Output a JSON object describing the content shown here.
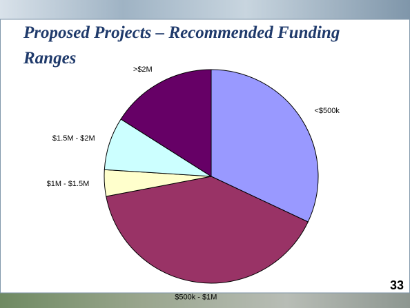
{
  "chart_data": {
    "type": "pie",
    "title_lines": [
      "Proposed Projects – Recommended Funding",
      "Ranges"
    ],
    "categories": [
      "<$500k",
      "$500k - $1M",
      "$1M - $1.5M",
      "$1.5M - $2M",
      ">$2M"
    ],
    "values": [
      32,
      40,
      4,
      8,
      16
    ],
    "colors": [
      "#9999ff",
      "#993366",
      "#ffffcc",
      "#ccffff",
      "#660066"
    ]
  },
  "page_number": "33"
}
